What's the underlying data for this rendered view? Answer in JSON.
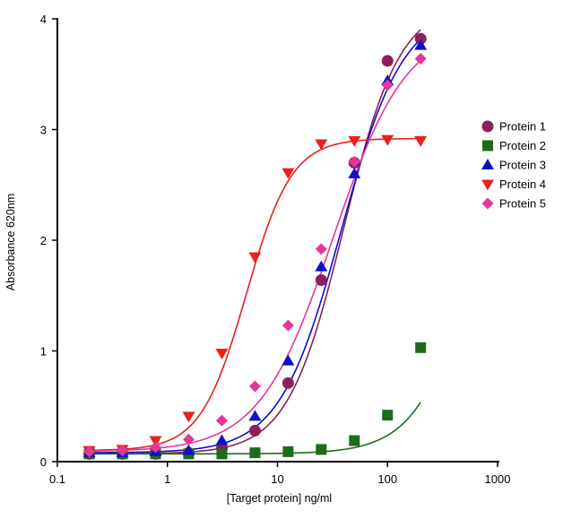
{
  "chart_data": {
    "type": "scatter",
    "title": "",
    "xlabel": "[Target protein] ng/ml",
    "ylabel": "Absorbance 620nm",
    "xscale": "log",
    "xlim": [
      0.1,
      1000
    ],
    "ylim": [
      0,
      4
    ],
    "x_ticks": [
      0.1,
      1,
      10,
      100,
      1000
    ],
    "x_tick_labels": [
      "0.1",
      "1",
      "10",
      "100",
      "1000"
    ],
    "y_ticks": [
      0,
      1,
      2,
      3,
      4
    ],
    "y_tick_labels": [
      "0",
      "1",
      "2",
      "3",
      "4"
    ],
    "legend_position": "right",
    "fit": "sigmoidal curve through each series",
    "series": [
      {
        "name": "Protein 1",
        "color": "#8B1E5B",
        "marker": "circle",
        "x": [
          0.195,
          0.39,
          0.78,
          1.56,
          3.125,
          6.25,
          12.5,
          25,
          50,
          100,
          200
        ],
        "y": [
          0.07,
          0.07,
          0.07,
          0.08,
          0.12,
          0.28,
          0.71,
          1.64,
          2.7,
          3.62,
          3.82
        ],
        "fit": {
          "bottom": 0.07,
          "top": 4.15,
          "ec50": 40,
          "hill": 1.7
        }
      },
      {
        "name": "Protein 2",
        "color": "#1E6B1E",
        "marker": "square",
        "x": [
          0.195,
          0.39,
          0.78,
          1.56,
          3.125,
          6.25,
          12.5,
          25,
          50,
          100,
          200
        ],
        "y": [
          0.07,
          0.07,
          0.07,
          0.07,
          0.07,
          0.08,
          0.09,
          0.11,
          0.19,
          0.42,
          1.03
        ],
        "fit": {
          "bottom": 0.07,
          "top": 4.0,
          "ec50": 700,
          "hill": 1.6
        }
      },
      {
        "name": "Protein 3",
        "color": "#1010C8",
        "marker": "triangle-up",
        "x": [
          0.195,
          0.39,
          0.78,
          1.56,
          3.125,
          6.25,
          12.5,
          25,
          50,
          100,
          200
        ],
        "y": [
          0.08,
          0.08,
          0.09,
          0.1,
          0.19,
          0.41,
          0.91,
          1.76,
          2.6,
          3.44,
          3.76
        ],
        "fit": {
          "bottom": 0.08,
          "top": 4.1,
          "ec50": 38,
          "hill": 1.55
        }
      },
      {
        "name": "Protein 4",
        "color": "#E82020",
        "marker": "triangle-down",
        "x": [
          0.195,
          0.39,
          0.78,
          1.56,
          3.125,
          6.25,
          12.5,
          25,
          50,
          100,
          200
        ],
        "y": [
          0.1,
          0.11,
          0.19,
          0.41,
          0.98,
          1.85,
          2.61,
          2.87,
          2.9,
          2.91,
          2.9
        ],
        "fit": {
          "bottom": 0.1,
          "top": 2.92,
          "ec50": 5.2,
          "hill": 2.1
        }
      },
      {
        "name": "Protein 5",
        "color": "#E8359A",
        "marker": "diamond",
        "x": [
          0.195,
          0.39,
          0.78,
          1.56,
          3.125,
          6.25,
          12.5,
          25,
          50,
          100,
          200
        ],
        "y": [
          0.09,
          0.1,
          0.13,
          0.2,
          0.37,
          0.68,
          1.23,
          1.92,
          2.71,
          3.4,
          3.64
        ],
        "fit": {
          "bottom": 0.09,
          "top": 3.95,
          "ec50": 32,
          "hill": 1.3
        }
      }
    ]
  }
}
